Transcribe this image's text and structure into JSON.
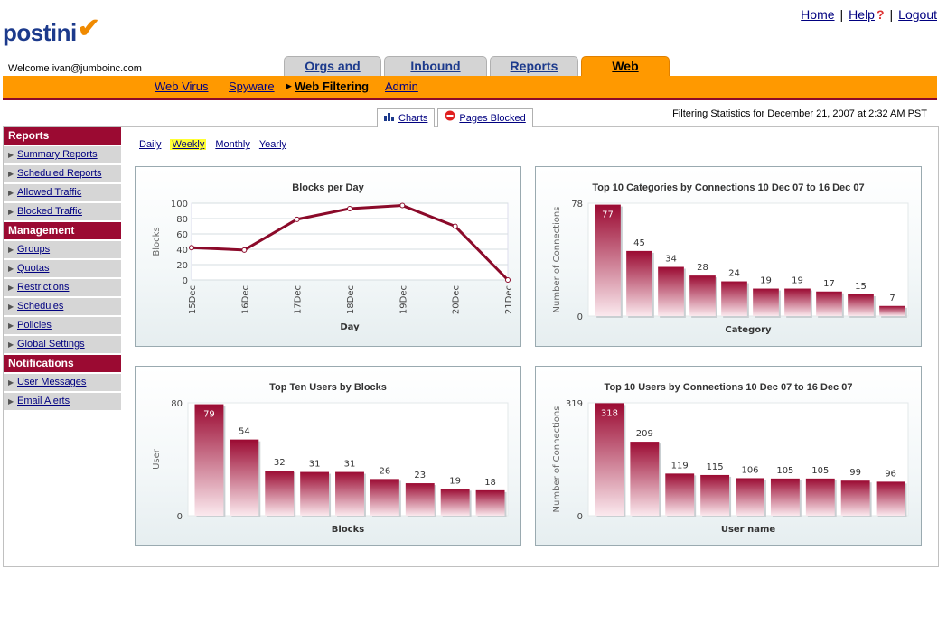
{
  "toplinks": {
    "home": "Home",
    "sep": "|",
    "help": "Help",
    "q": "?",
    "logout": "Logout"
  },
  "logo": {
    "text": "postini",
    "check": "✔"
  },
  "welcome": "Welcome ivan@jumboinc.com",
  "tabs": [
    {
      "label": "Orgs and Users",
      "active": false
    },
    {
      "label": "Inbound Servers",
      "active": false
    },
    {
      "label": "Reports",
      "active": false
    },
    {
      "label": "Web Content",
      "active": true
    }
  ],
  "subnav": {
    "items": [
      {
        "label": "Web Virus"
      },
      {
        "label": "Spyware"
      },
      {
        "label": "Web Filtering",
        "current": true
      },
      {
        "label": "Admin"
      }
    ]
  },
  "view_tabs": {
    "charts": "Charts",
    "pages_blocked": "Pages Blocked"
  },
  "stats_text": "Filtering Statistics for December 21, 2007 at 2:32 AM PST",
  "periods": [
    {
      "label": "Daily",
      "selected": false
    },
    {
      "label": "Weekly",
      "selected": true
    },
    {
      "label": "Monthly",
      "selected": false
    },
    {
      "label": "Yearly",
      "selected": false
    }
  ],
  "sidebar": {
    "reports_header": "Reports",
    "reports": [
      "Summary Reports",
      "Scheduled Reports",
      "Allowed Traffic",
      "Blocked Traffic"
    ],
    "management_header": "Management",
    "management": [
      "Groups",
      "Quotas",
      "Restrictions",
      "Schedules",
      "Policies",
      "Global Settings"
    ],
    "notifications_header": "Notifications",
    "notifications": [
      "User Messages",
      "Email Alerts"
    ]
  },
  "colors": {
    "accent": "#ff9900",
    "brand": "#9b0a32",
    "bar": "#9b0a32"
  },
  "chart_data": [
    {
      "type": "line",
      "title": "Blocks per Day",
      "xlabel": "Day",
      "ylabel": "Blocks",
      "categories": [
        "15Dec",
        "16Dec",
        "17Dec",
        "18Dec",
        "19Dec",
        "20Dec",
        "21Dec"
      ],
      "values": [
        42,
        39,
        79,
        93,
        97,
        70,
        0
      ],
      "ylim": [
        0,
        100
      ],
      "yticks": [
        0,
        20,
        40,
        60,
        80,
        100
      ],
      "grid": true
    },
    {
      "type": "bar",
      "title": "Top 10 Categories by Connections 10 Dec 07 to 16 Dec 07",
      "xlabel": "Category",
      "ylabel": "Number of Connections",
      "values": [
        77,
        45,
        34,
        28,
        24,
        19,
        19,
        17,
        15,
        7
      ],
      "ylim": [
        0,
        78
      ],
      "yticks": [
        0,
        78
      ]
    },
    {
      "type": "bar",
      "title": "Top Ten Users by Blocks",
      "xlabel": "Blocks",
      "ylabel": "User",
      "values": [
        79,
        54,
        32,
        31,
        31,
        26,
        23,
        19,
        18
      ],
      "ylim": [
        0,
        80
      ],
      "yticks": [
        0,
        80
      ]
    },
    {
      "type": "bar",
      "title": "Top 10 Users by Connections 10 Dec 07 to 16 Dec 07",
      "xlabel": "User name",
      "ylabel": "Number of Connections",
      "values": [
        318,
        209,
        119,
        115,
        106,
        105,
        105,
        99,
        96
      ],
      "ylim": [
        0,
        319
      ],
      "yticks": [
        0,
        319
      ]
    }
  ]
}
